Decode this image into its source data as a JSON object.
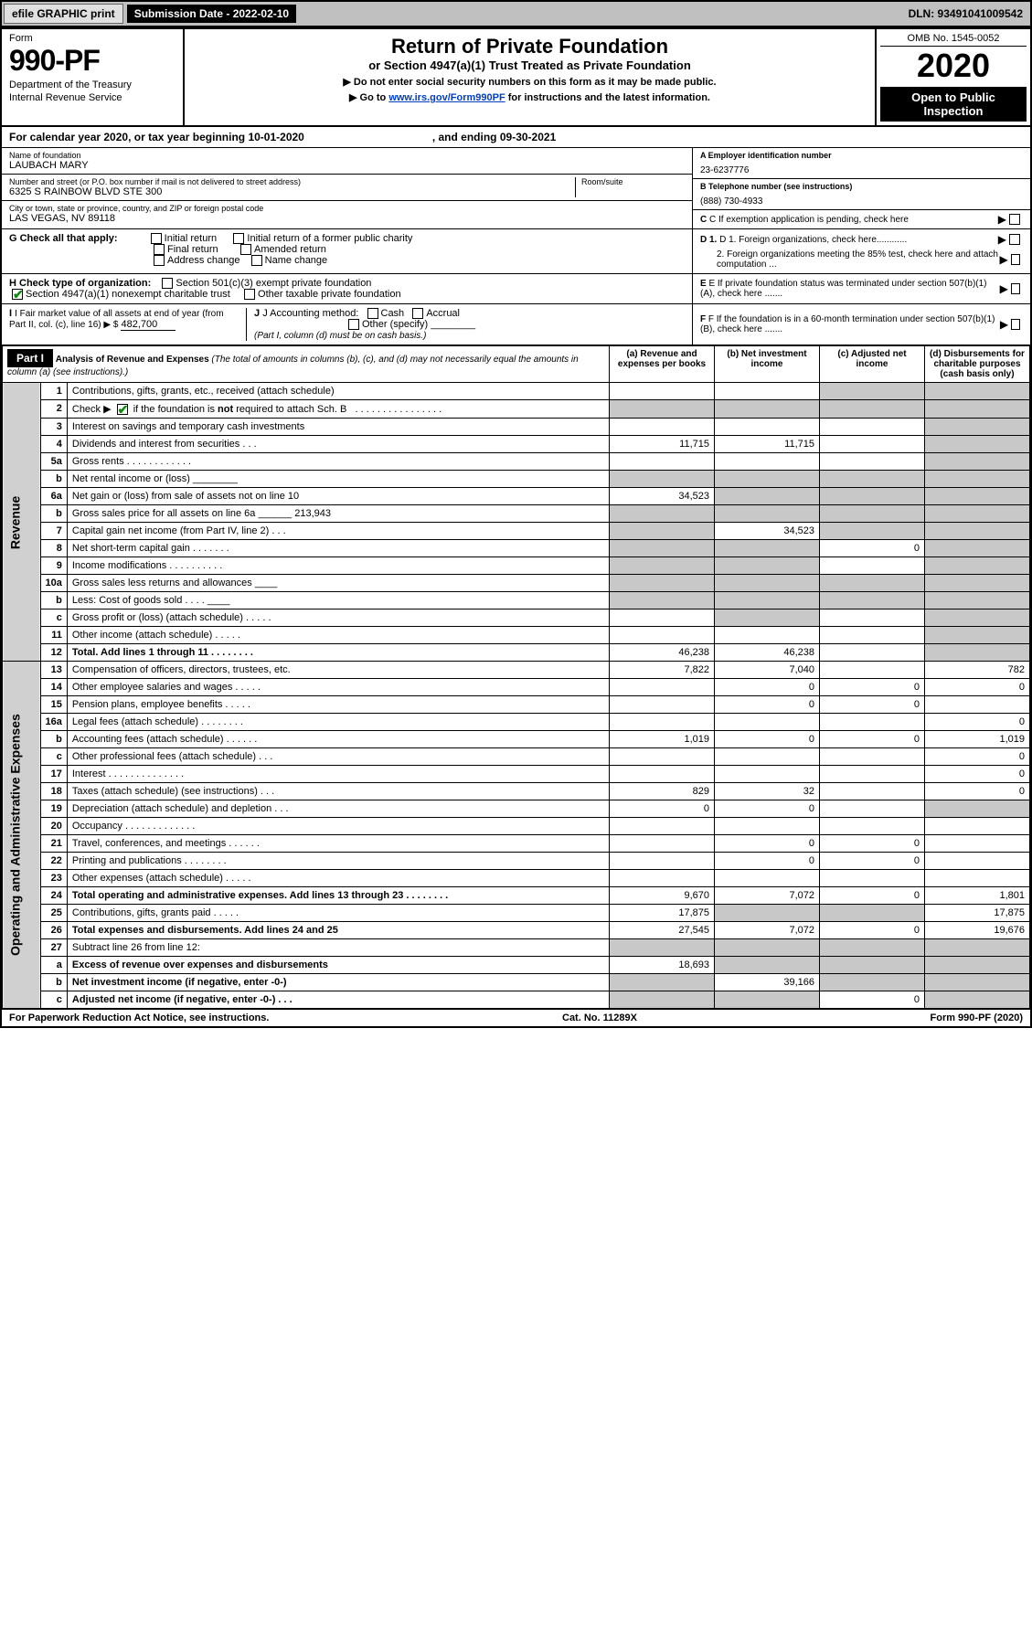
{
  "topbar": {
    "efile": "efile GRAPHIC print",
    "submission_label": "Submission Date - 2022-02-10",
    "dln": "DLN: 93491041009542"
  },
  "header": {
    "form_label": "Form",
    "form_number": "990-PF",
    "dept1": "Department of the Treasury",
    "dept2": "Internal Revenue Service",
    "title": "Return of Private Foundation",
    "subtitle": "or Section 4947(a)(1) Trust Treated as Private Foundation",
    "note1": "▶ Do not enter social security numbers on this form as it may be made public.",
    "note2_pre": "▶ Go to ",
    "note2_link": "www.irs.gov/Form990PF",
    "note2_post": " for instructions and the latest information.",
    "omb": "OMB No. 1545-0052",
    "year": "2020",
    "open": "Open to Public Inspection"
  },
  "calendar": {
    "text_pre": "For calendar year 2020, or tax year beginning ",
    "begin": "10-01-2020",
    "mid": " , and ending ",
    "end": "09-30-2021"
  },
  "entity": {
    "name_label": "Name of foundation",
    "name": "LAUBACH MARY",
    "addr_label": "Number and street (or P.O. box number if mail is not delivered to street address)",
    "addr": "6325 S RAINBOW BLVD STE 300",
    "room_label": "Room/suite",
    "city_label": "City or town, state or province, country, and ZIP or foreign postal code",
    "city": "LAS VEGAS, NV  89118",
    "ein_label": "A Employer identification number",
    "ein": "23-6237776",
    "phone_label": "B Telephone number (see instructions)",
    "phone": "(888) 730-4933",
    "c_label": "C If exemption application is pending, check here"
  },
  "checks": {
    "g_label": "G Check all that apply:",
    "g_opts": [
      "Initial return",
      "Initial return of a former public charity",
      "Final return",
      "Amended return",
      "Address change",
      "Name change"
    ],
    "h_label": "H Check type of organization:",
    "h_opts": [
      "Section 501(c)(3) exempt private foundation",
      "Section 4947(a)(1) nonexempt charitable trust",
      "Other taxable private foundation"
    ],
    "i_label": "I Fair market value of all assets at end of year (from Part II, col. (c), line 16) ▶ $",
    "i_value": "482,700",
    "j_label": "J Accounting method:",
    "j_opts": [
      "Cash",
      "Accrual",
      "Other (specify)"
    ],
    "j_note": "(Part I, column (d) must be on cash basis.)",
    "d1": "D 1. Foreign organizations, check here............",
    "d2": "2. Foreign organizations meeting the 85% test, check here and attach computation ...",
    "e": "E If private foundation status was terminated under section 507(b)(1)(A), check here .......",
    "f": "F If the foundation is in a 60-month termination under section 507(b)(1)(B), check here .......",
    "h_checked_idx": 1
  },
  "part1": {
    "header": "Part I",
    "title": "Analysis of Revenue and Expenses",
    "title_note": "(The total of amounts in columns (b), (c), and (d) may not necessarily equal the amounts in column (a) (see instructions).)",
    "col_a": "(a) Revenue and expenses per books",
    "col_b": "(b) Net investment income",
    "col_c": "(c) Adjusted net income",
    "col_d": "(d) Disbursements for charitable purposes (cash basis only)",
    "side_revenue": "Revenue",
    "side_expenses": "Operating and Administrative Expenses"
  },
  "rows": [
    {
      "n": "1",
      "desc": "Contributions, gifts, grants, etc., received (attach schedule)",
      "a": "",
      "b": "",
      "c": "",
      "d": "",
      "shade_cd": true
    },
    {
      "n": "2",
      "desc": "Check ▶ ☑ if the foundation is not required to attach Sch. B   . . . . . . . . . . . . . . . . .",
      "a": "",
      "b": "",
      "c": "",
      "d": "",
      "shade_all": true,
      "checked": true
    },
    {
      "n": "3",
      "desc": "Interest on savings and temporary cash investments",
      "a": "",
      "b": "",
      "c": "",
      "d": "",
      "shade_d": true
    },
    {
      "n": "4",
      "desc": "Dividends and interest from securities  . . .",
      "a": "11,715",
      "b": "11,715",
      "c": "",
      "d": "",
      "shade_d": true
    },
    {
      "n": "5a",
      "desc": "Gross rents  . . . . . . . . . . . .",
      "a": "",
      "b": "",
      "c": "",
      "d": "",
      "shade_d": true
    },
    {
      "n": "b",
      "desc": "Net rental income or (loss) ________",
      "a": "",
      "b": "",
      "c": "",
      "d": "",
      "shade_all": true
    },
    {
      "n": "6a",
      "desc": "Net gain or (loss) from sale of assets not on line 10",
      "a": "34,523",
      "b": "",
      "c": "",
      "d": "",
      "shade_bcd": true
    },
    {
      "n": "b",
      "desc": "Gross sales price for all assets on line 6a ______ 213,943",
      "a": "",
      "b": "",
      "c": "",
      "d": "",
      "shade_all": true
    },
    {
      "n": "7",
      "desc": "Capital gain net income (from Part IV, line 2)  . . .",
      "a": "",
      "b": "34,523",
      "c": "",
      "d": "",
      "shade_acd": true,
      "shade_a": true
    },
    {
      "n": "8",
      "desc": "Net short-term capital gain  . . . . . . .",
      "a": "",
      "b": "",
      "c": "0",
      "d": "",
      "shade_abd": true
    },
    {
      "n": "9",
      "desc": "Income modifications . . . . . . . . . .",
      "a": "",
      "b": "",
      "c": "",
      "d": "",
      "shade_abd": true
    },
    {
      "n": "10a",
      "desc": "Gross sales less returns and allowances  ____",
      "a": "",
      "b": "",
      "c": "",
      "d": "",
      "shade_all": true
    },
    {
      "n": "b",
      "desc": "Less: Cost of goods sold  . . . .  ____",
      "a": "",
      "b": "",
      "c": "",
      "d": "",
      "shade_all": true
    },
    {
      "n": "c",
      "desc": "Gross profit or (loss) (attach schedule)  . . . . .",
      "a": "",
      "b": "",
      "c": "",
      "d": "",
      "shade_bd": true
    },
    {
      "n": "11",
      "desc": "Other income (attach schedule)  . . . . .",
      "a": "",
      "b": "",
      "c": "",
      "d": "",
      "shade_d": true
    },
    {
      "n": "12",
      "desc": "Total. Add lines 1 through 11  . . . . . . . .",
      "a": "46,238",
      "b": "46,238",
      "c": "",
      "d": "",
      "shade_d": true,
      "bold": true
    },
    {
      "n": "13",
      "desc": "Compensation of officers, directors, trustees, etc.",
      "a": "7,822",
      "b": "7,040",
      "c": "",
      "d": "782"
    },
    {
      "n": "14",
      "desc": "Other employee salaries and wages  . . . . .",
      "a": "",
      "b": "0",
      "c": "0",
      "d": "0"
    },
    {
      "n": "15",
      "desc": "Pension plans, employee benefits  . . . . .",
      "a": "",
      "b": "0",
      "c": "0",
      "d": ""
    },
    {
      "n": "16a",
      "desc": "Legal fees (attach schedule) . . . . . . . .",
      "a": "",
      "b": "",
      "c": "",
      "d": "0"
    },
    {
      "n": "b",
      "desc": "Accounting fees (attach schedule)  . . . . . .",
      "a": "1,019",
      "b": "0",
      "c": "0",
      "d": "1,019"
    },
    {
      "n": "c",
      "desc": "Other professional fees (attach schedule)  . . .",
      "a": "",
      "b": "",
      "c": "",
      "d": "0"
    },
    {
      "n": "17",
      "desc": "Interest . . . . . . . . . . . . . .",
      "a": "",
      "b": "",
      "c": "",
      "d": "0"
    },
    {
      "n": "18",
      "desc": "Taxes (attach schedule) (see instructions)  . . .",
      "a": "829",
      "b": "32",
      "c": "",
      "d": "0"
    },
    {
      "n": "19",
      "desc": "Depreciation (attach schedule) and depletion  . . .",
      "a": "0",
      "b": "0",
      "c": "",
      "d": "",
      "shade_d": true
    },
    {
      "n": "20",
      "desc": "Occupancy . . . . . . . . . . . . .",
      "a": "",
      "b": "",
      "c": "",
      "d": ""
    },
    {
      "n": "21",
      "desc": "Travel, conferences, and meetings . . . . . .",
      "a": "",
      "b": "0",
      "c": "0",
      "d": ""
    },
    {
      "n": "22",
      "desc": "Printing and publications . . . . . . . .",
      "a": "",
      "b": "0",
      "c": "0",
      "d": ""
    },
    {
      "n": "23",
      "desc": "Other expenses (attach schedule)  . . . . .",
      "a": "",
      "b": "",
      "c": "",
      "d": ""
    },
    {
      "n": "24",
      "desc": "Total operating and administrative expenses. Add lines 13 through 23  . . . . . . . .",
      "a": "9,670",
      "b": "7,072",
      "c": "0",
      "d": "1,801",
      "bold": true
    },
    {
      "n": "25",
      "desc": "Contributions, gifts, grants paid  . . . . .",
      "a": "17,875",
      "b": "",
      "c": "",
      "d": "17,875",
      "shade_bc": true
    },
    {
      "n": "26",
      "desc": "Total expenses and disbursements. Add lines 24 and 25",
      "a": "27,545",
      "b": "7,072",
      "c": "0",
      "d": "19,676",
      "bold": true
    },
    {
      "n": "27",
      "desc": "Subtract line 26 from line 12:",
      "a": "",
      "b": "",
      "c": "",
      "d": "",
      "shade_all": true
    },
    {
      "n": "a",
      "desc": "Excess of revenue over expenses and disbursements",
      "a": "18,693",
      "b": "",
      "c": "",
      "d": "",
      "shade_bcd": true,
      "bold": true
    },
    {
      "n": "b",
      "desc": "Net investment income (if negative, enter -0-)",
      "a": "",
      "b": "39,166",
      "c": "",
      "d": "",
      "shade_acd": true,
      "bold": true
    },
    {
      "n": "c",
      "desc": "Adjusted net income (if negative, enter -0-)  . . .",
      "a": "",
      "b": "",
      "c": "0",
      "d": "",
      "shade_abd": true,
      "bold": true
    }
  ],
  "footer": {
    "left": "For Paperwork Reduction Act Notice, see instructions.",
    "mid": "Cat. No. 11289X",
    "right": "Form 990-PF (2020)"
  },
  "colors": {
    "topbar_bg": "#c0c0c0",
    "shade_bg": "#c8c8c8",
    "black": "#000000",
    "link": "#0040c0",
    "check_green": "#0a8a0a"
  },
  "revenue_end_idx": 15
}
